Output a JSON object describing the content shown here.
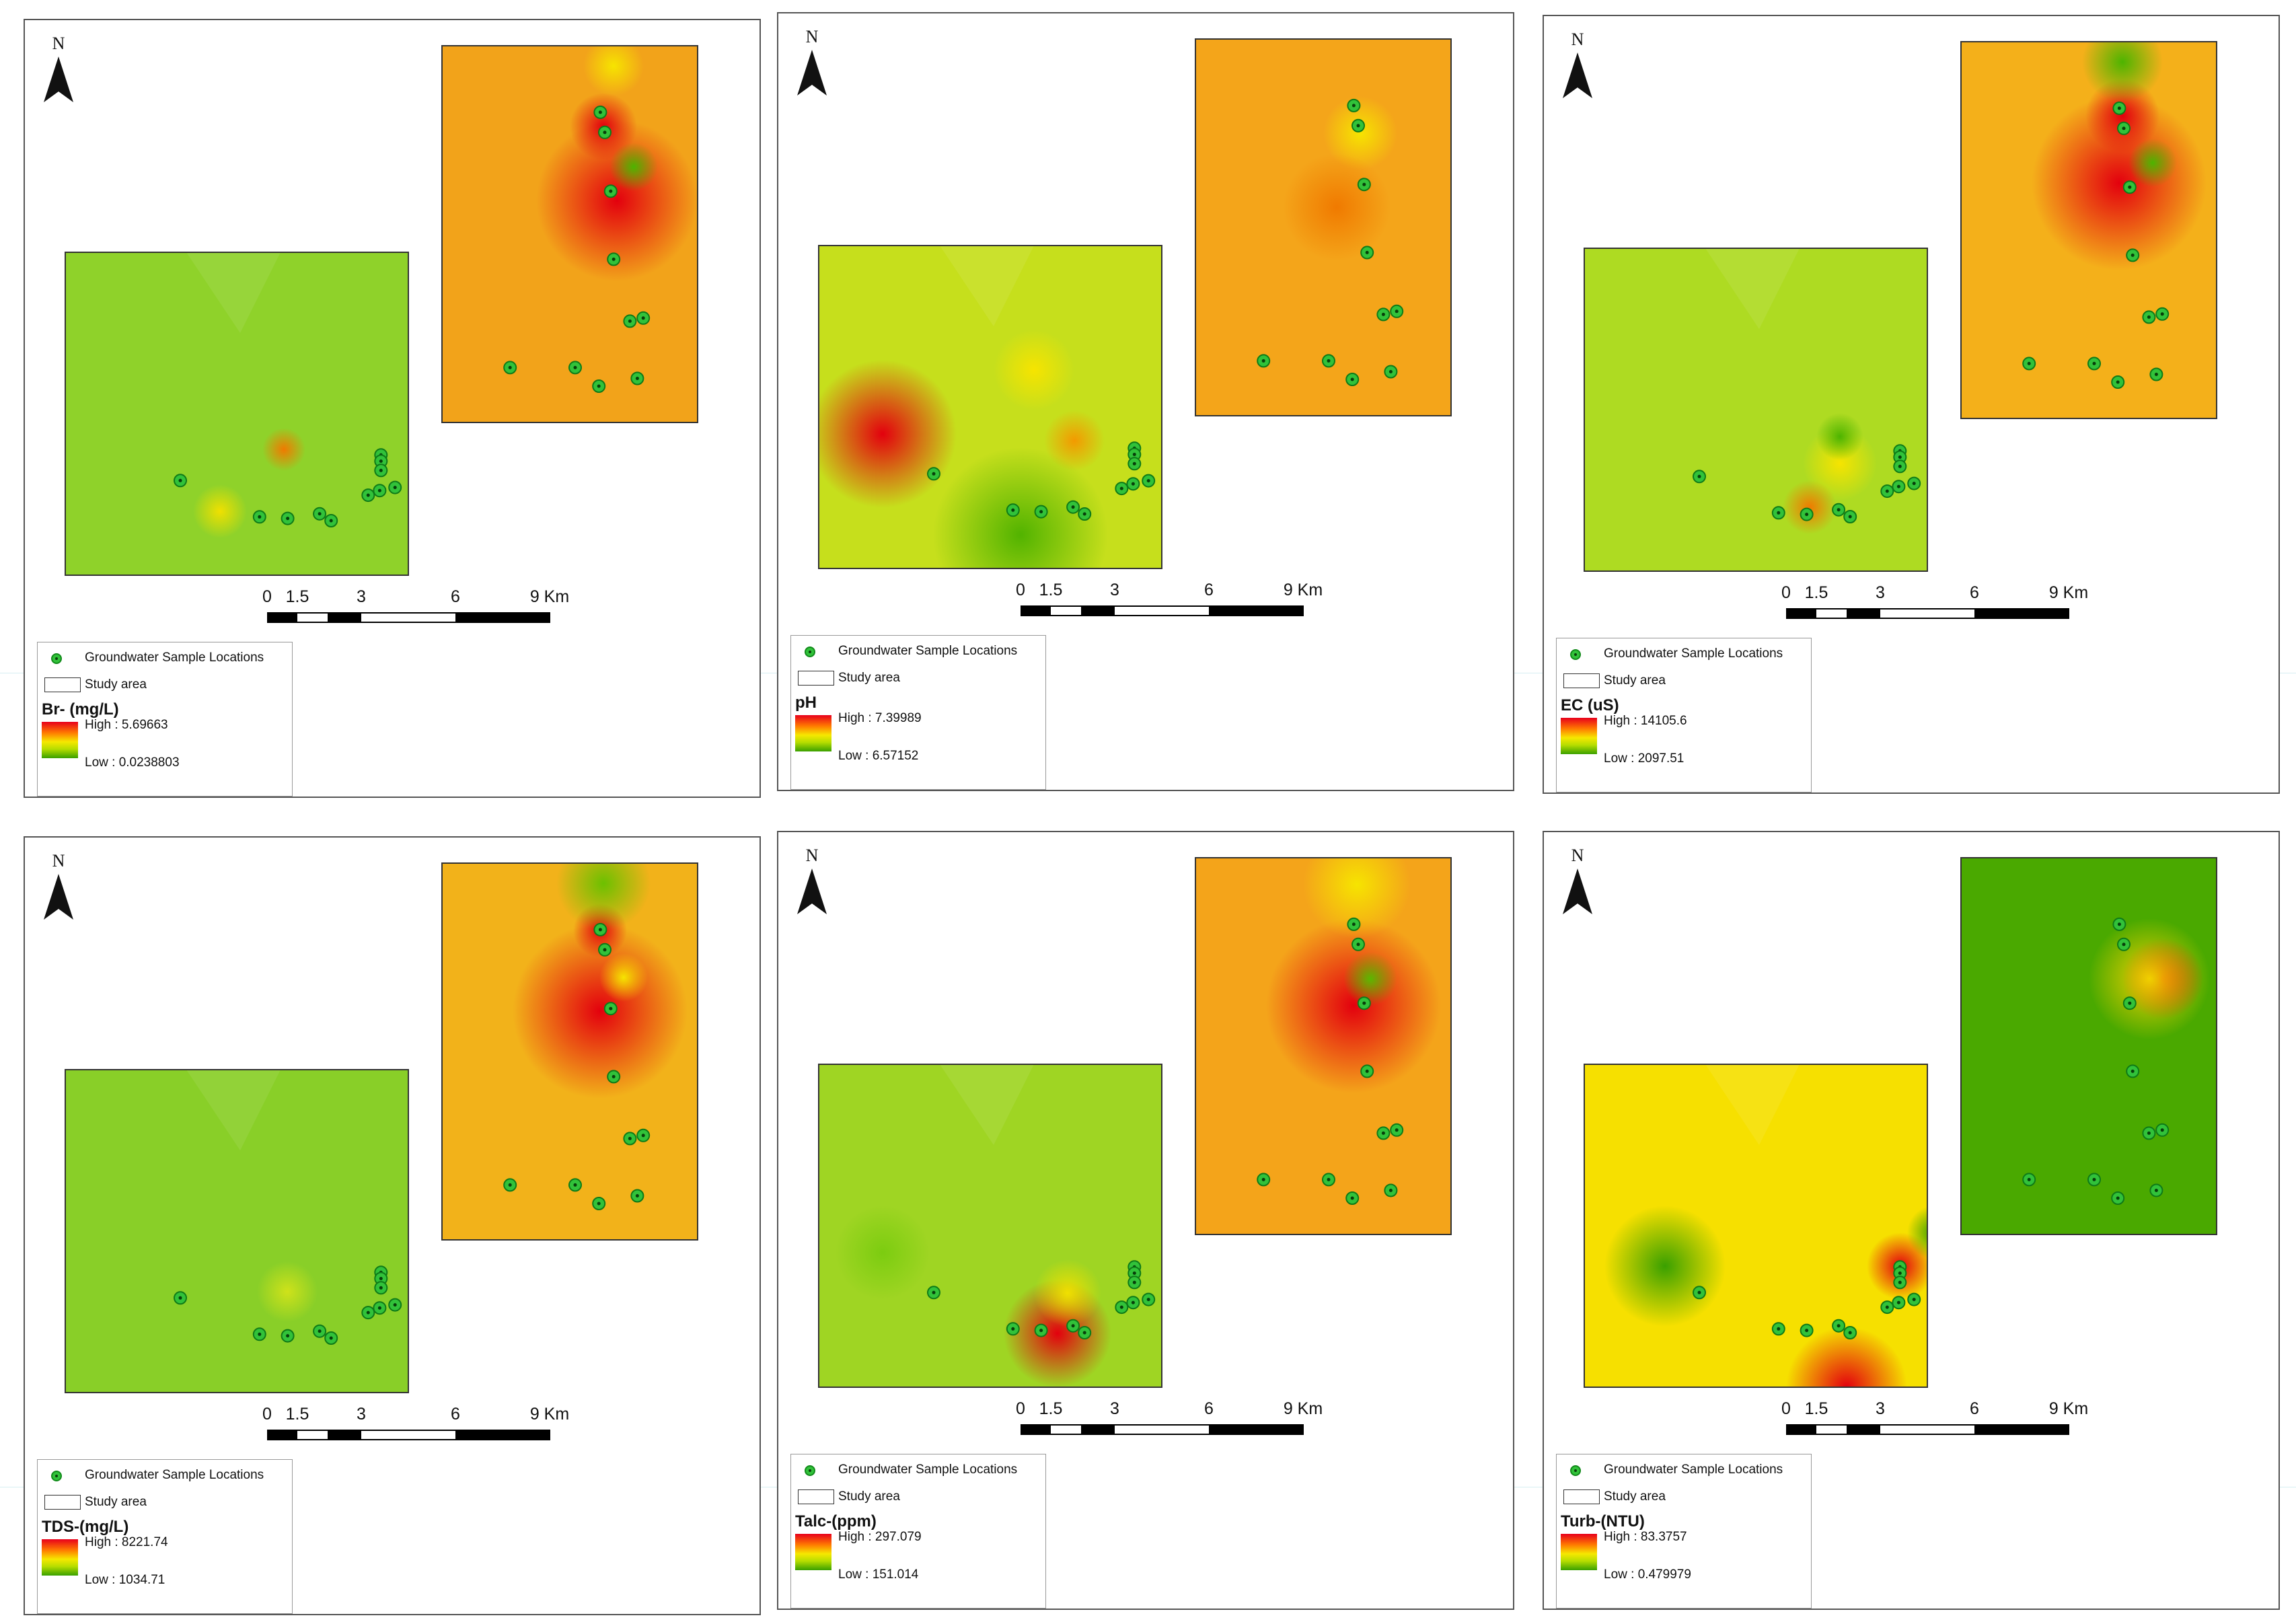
{
  "north_label": "N",
  "scale_ticks": [
    "0",
    "1.5",
    "3",
    "6",
    "9 Km"
  ],
  "legend": {
    "samples_label": "Groundwater Sample Locations",
    "study_area_label": "Study area"
  },
  "colors": {
    "high": "#e8001c",
    "mid": "#f6e800",
    "low": "#3aa000",
    "sample_point": "#31c23a"
  },
  "panels": [
    {
      "title": "Br- (mg/L)",
      "high": "High : 5.69663",
      "low": "Low : 0.0238803"
    },
    {
      "title": "pH",
      "high": "High : 7.39989",
      "low": "Low : 6.57152"
    },
    {
      "title": "EC (uS)",
      "high": "High : 14105.6",
      "low": "Low : 2097.51"
    },
    {
      "title": "TDS-(mg/L)",
      "high": "High : 8221.74",
      "low": "Low : 1034.71"
    },
    {
      "title": "Talc-(ppm)",
      "high": "High : 297.079",
      "low": "Low : 151.014"
    },
    {
      "title": "Turb-(NTU)",
      "high": "High : 83.3757",
      "low": "Low : 0.479979"
    }
  ]
}
